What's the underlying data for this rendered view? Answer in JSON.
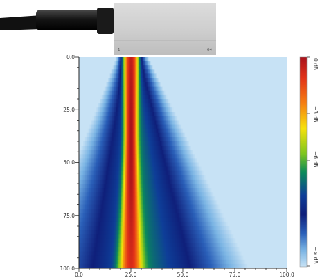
{
  "probe": {
    "element_first": "1",
    "element_last": "64"
  },
  "chart_data": {
    "type": "heatmap",
    "title": "",
    "xlabel": "",
    "ylabel": "",
    "xlim": [
      0,
      100
    ],
    "ylim": [
      0,
      100
    ],
    "y_inverted": true,
    "x_ticks": [
      "0.0",
      "25.0",
      "50.0",
      "75.0",
      "100.0"
    ],
    "y_ticks": [
      "0.0",
      "25.0",
      "50.0",
      "75.0",
      "100.0"
    ],
    "beam": {
      "center_x": 25,
      "aperture_half_width": 3.5,
      "focus_depth": 38,
      "peak_db": 0
    },
    "colorbar": {
      "labels": [
        "0 dB",
        "−3 dB",
        "−6 dB",
        "−∞ dB"
      ],
      "values_db": [
        0,
        -3,
        -6,
        null
      ],
      "colors": [
        "#a8121c",
        "#e23218",
        "#f57e12",
        "#f6e10c",
        "#7fc61f",
        "#0a8a5a",
        "#0e3e98",
        "#0f1f7a",
        "#2a5fb8",
        "#79b3e3",
        "#c7e2f5"
      ]
    }
  }
}
